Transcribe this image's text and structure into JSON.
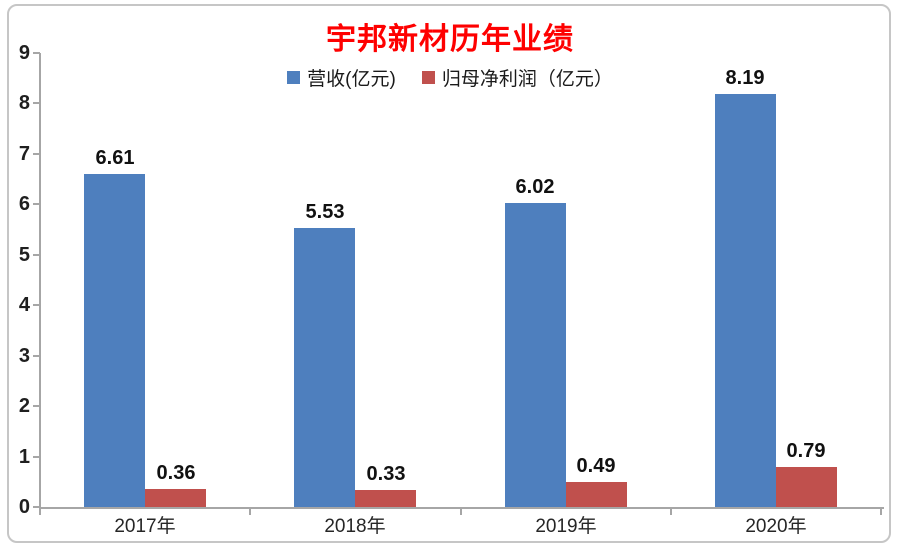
{
  "title": "宇邦新材历年业绩",
  "colors": {
    "title": "#fe0000",
    "axis": "#a6a6a6",
    "tick_text": "#1f1f1f",
    "frame_border": "#c6c6c6",
    "background": "#ffffff"
  },
  "chart_data": {
    "type": "bar",
    "title": "宇邦新材历年业绩",
    "categories": [
      "2017年",
      "2018年",
      "2019年",
      "2020年"
    ],
    "series": [
      {
        "key": "revenue",
        "name": "营收(亿元)",
        "color": "#4e7fbe",
        "values": [
          6.61,
          5.53,
          6.02,
          8.19
        ]
      },
      {
        "key": "net-profit",
        "name": "归母净利润（亿元）",
        "color": "#c0504d",
        "values": [
          0.36,
          0.33,
          0.49,
          0.79
        ]
      }
    ],
    "data_labels": [
      "6.61",
      "5.53",
      "6.02",
      "8.19",
      "0.36",
      "0.33",
      "0.49",
      "0.79"
    ],
    "xlabel": "",
    "ylabel": "",
    "ylim": [
      0,
      9
    ],
    "yticks": [
      0,
      1,
      2,
      3,
      4,
      5,
      6,
      7,
      8,
      9
    ],
    "grid": false,
    "legend_position": "top-center",
    "data_label_format": "0.00"
  }
}
